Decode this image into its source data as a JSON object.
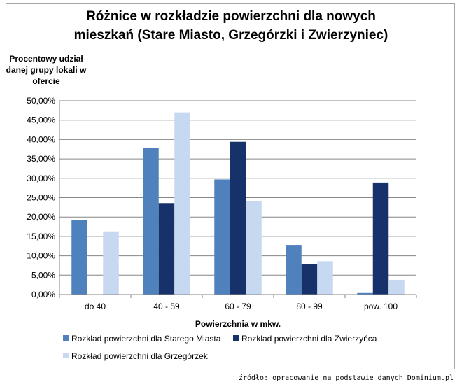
{
  "chart_data": {
    "type": "bar",
    "title_lines": [
      "Różnice w rozkładzie powierzchni dla nowych",
      "mieszkań (Stare Miasto, Grzegórzki  i Zwierzyniec)"
    ],
    "ylabel_lines": [
      "Procentowy udział",
      "danej grupy lokali w",
      "ofercie"
    ],
    "xlabel": "Powierzchnia w mkw.",
    "categories": [
      "do 40",
      "40 - 59",
      "60 - 79",
      "80 - 99",
      "pow. 100"
    ],
    "ylim": [
      0,
      50
    ],
    "yticks": [
      "0,00%",
      "5,00%",
      "10,00%",
      "15,00%",
      "20,00%",
      "25,00%",
      "30,00%",
      "35,00%",
      "40,00%",
      "45,00%",
      "50,00%"
    ],
    "grid": true,
    "legend_position": "bottom",
    "series": [
      {
        "name": "Rozkład powierzchni dla Starego Miasta",
        "color": "#4f81bd",
        "values": [
          19.3,
          37.8,
          29.7,
          12.8,
          0.4
        ]
      },
      {
        "name": "Rozkład powierzchni dla Zwierzyńca",
        "color": "#17326b",
        "values": [
          0,
          23.6,
          39.4,
          7.9,
          28.9
        ]
      },
      {
        "name": "Rozkład powierzchni dla Grzegórzek",
        "color": "#c6d9f1",
        "values": [
          16.3,
          47.0,
          24.1,
          8.6,
          3.8
        ]
      }
    ]
  },
  "source_note": "źródło: opracowanie na podstawie danych Dominium.pl"
}
